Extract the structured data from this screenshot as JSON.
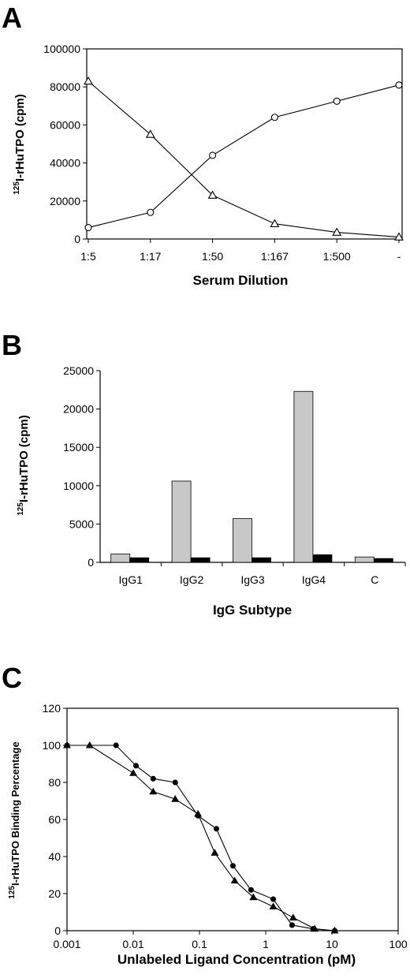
{
  "chart_data": [
    {
      "panel": "A",
      "type": "line",
      "categories": [
        "1:5",
        "1:17",
        "1:50",
        "1:167",
        "1:500",
        "-"
      ],
      "xlabel": "Serum Dilution",
      "ylabel_sup": "125",
      "ylabel_rest": "I-rHuTPO (cpm)",
      "ylim": [
        0,
        100000
      ],
      "yticks": [
        "0",
        "20000",
        "40000",
        "60000",
        "80000",
        "100000"
      ],
      "series": [
        {
          "marker": "circle",
          "values": [
            6000,
            14000,
            44000,
            64000,
            72500,
            81000
          ]
        },
        {
          "marker": "triangle",
          "values": [
            83000,
            55000,
            23000,
            8000,
            3500,
            1000
          ]
        }
      ],
      "legend": "none"
    },
    {
      "panel": "B",
      "type": "bar",
      "categories": [
        "IgG1",
        "IgG2",
        "IgG3",
        "IgG4",
        "C"
      ],
      "xlabel": "IgG Subtype",
      "ylabel_sup": "125",
      "ylabel_rest": "I-rHuTPO (cpm)",
      "ylim": [
        0,
        25000
      ],
      "yticks": [
        "0",
        "5000",
        "10000",
        "15000",
        "20000",
        "25000"
      ],
      "series": [
        {
          "color": "#c8c8c8",
          "values": [
            1100,
            10600,
            5700,
            22300,
            700
          ]
        },
        {
          "color": "#000000",
          "values": [
            600,
            600,
            600,
            1000,
            500
          ]
        }
      ],
      "legend": "none"
    },
    {
      "panel": "C",
      "type": "line",
      "xscale": "log",
      "xlim": [
        0.001,
        100
      ],
      "xticks": [
        "0.001",
        "0.01",
        "0.1",
        "1",
        "10",
        "100"
      ],
      "xlabel": "Unlabeled Ligand Concentration (pM)",
      "ylabel_sup": "125",
      "ylabel_rest": "I-rHuTPO Binding Percentage",
      "ylim": [
        0,
        120
      ],
      "yticks": [
        "0",
        "20",
        "40",
        "60",
        "80",
        "100",
        "120"
      ],
      "series": [
        {
          "marker": "circle",
          "x": [
            0.001,
            0.0055,
            0.011,
            0.02,
            0.043,
            0.095,
            0.18,
            0.32,
            0.6,
            1.3,
            2.5,
            5.2,
            11
          ],
          "values": [
            100,
            100,
            89,
            82,
            80,
            62,
            55,
            35,
            22,
            17,
            3,
            1,
            0
          ]
        },
        {
          "marker": "triangle",
          "x": [
            0.001,
            0.0022,
            0.01,
            0.02,
            0.043,
            0.095,
            0.17,
            0.34,
            0.65,
            1.3,
            2.6,
            5.5,
            11
          ],
          "values": [
            100,
            100,
            85,
            75,
            71,
            63,
            42,
            27,
            18,
            13,
            7,
            1,
            0
          ]
        }
      ],
      "legend": "none"
    }
  ]
}
